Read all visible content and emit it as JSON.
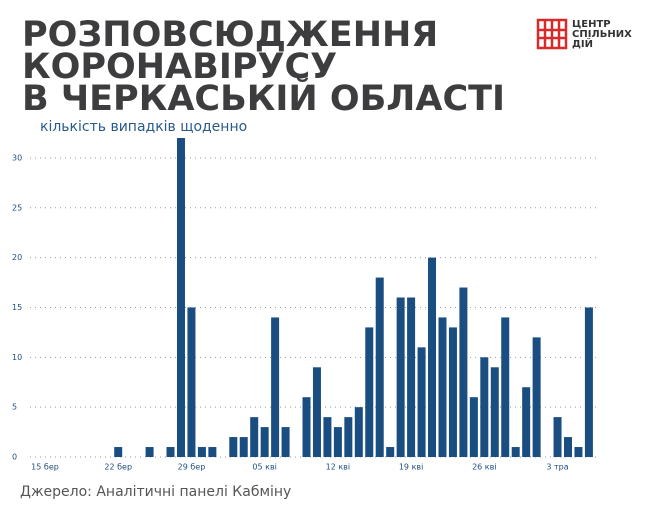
{
  "chart_data": {
    "type": "bar",
    "title_lines": [
      "РОЗПОВСЮДЖЕННЯ",
      "КОРОНАВІРУСУ",
      "В ЧЕРКАСЬКІЙ ОБЛАСТІ"
    ],
    "subtitle": "кількість випадків щоденно",
    "source": "Джерело: Аналітичні панелі Кабміну",
    "logo": [
      "ЦЕНТР",
      "СПІЛЬНИХ",
      "ДІЙ"
    ],
    "categories": [
      "15 бер",
      null,
      null,
      null,
      null,
      null,
      null,
      "22 бер",
      null,
      null,
      null,
      null,
      null,
      null,
      "29 бер",
      null,
      null,
      null,
      null,
      null,
      null,
      "05 кві",
      null,
      null,
      null,
      null,
      null,
      null,
      "12 кві",
      null,
      null,
      null,
      null,
      null,
      null,
      "19 кві",
      null,
      null,
      null,
      null,
      null,
      null,
      "26 кві",
      null,
      null,
      null,
      null,
      null,
      null,
      "3 тра",
      null,
      null,
      null
    ],
    "values": [
      0,
      0,
      0,
      0,
      0,
      0,
      0,
      1,
      0,
      0,
      1,
      0,
      1,
      32,
      15,
      1,
      1,
      0,
      2,
      2,
      4,
      3,
      14,
      3,
      0,
      6,
      9,
      4,
      3,
      4,
      5,
      13,
      18,
      1,
      16,
      16,
      11,
      20,
      14,
      13,
      17,
      6,
      10,
      9,
      14,
      1,
      7,
      12,
      0,
      4,
      2,
      1,
      15
    ],
    "color": "#1a4e80",
    "ylim": [
      0,
      32
    ],
    "yticks": [
      0,
      5,
      10,
      15,
      20,
      25,
      30
    ],
    "grid": true
  }
}
